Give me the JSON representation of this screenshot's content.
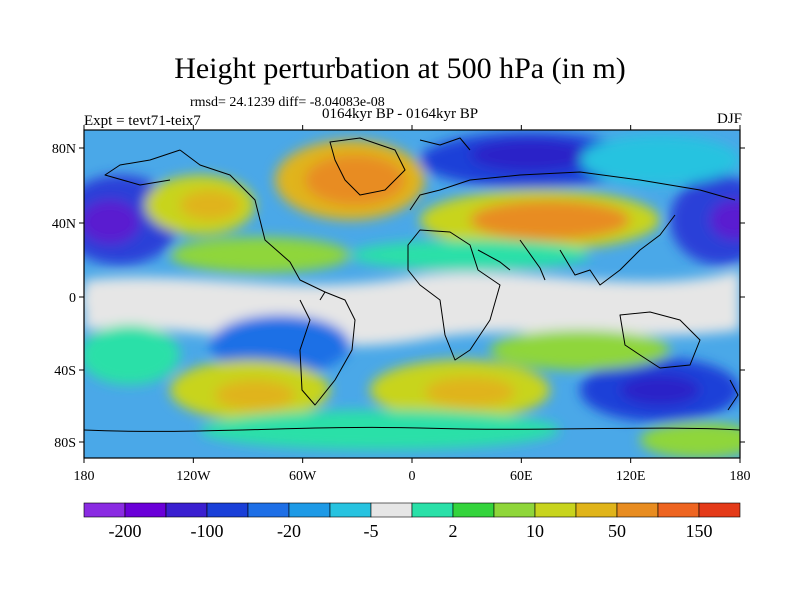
{
  "title": "Height perturbation at 500 hPa (in m)",
  "stats": "rmsd= 24.1239 diff= -8.04083e-08",
  "experiment": "Expt = tevt71-teix7",
  "period": "0164kyr BP - 0164kyr BP",
  "season": "DJF",
  "lat_ticks": [
    "80N",
    "40N",
    "0",
    "40S",
    "80S"
  ],
  "lon_ticks": [
    "180",
    "120W",
    "60W",
    "0",
    "60E",
    "120E",
    "180"
  ],
  "colorbar": {
    "colors": [
      "#8a2be2",
      "#6a00d8",
      "#3a1fd0",
      "#1a3fd8",
      "#1e6fe6",
      "#1e9ae6",
      "#27c3e0",
      "#e6e6e6",
      "#2ae0a8",
      "#34d43c",
      "#8fd63a",
      "#c8d41e",
      "#e0b41a",
      "#e88c20",
      "#ee6420",
      "#e43a18"
    ],
    "labels": [
      "-200",
      "-100",
      "-20",
      "-5",
      "2",
      "10",
      "50",
      "150"
    ]
  }
}
